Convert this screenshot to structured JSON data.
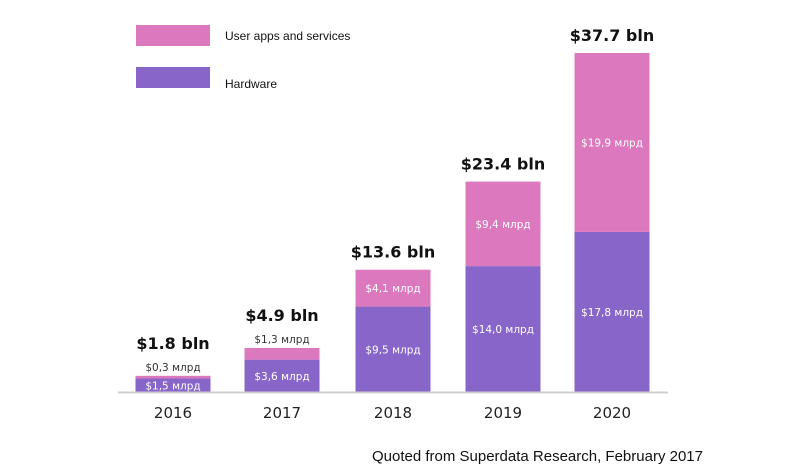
{
  "chart_data": {
    "type": "bar",
    "stacked": true,
    "categories": [
      "2016",
      "2017",
      "2018",
      "2019",
      "2020"
    ],
    "series": [
      {
        "name": "Hardware",
        "color": "#8865c8",
        "values": [
          1.5,
          3.6,
          9.5,
          14.0,
          17.8
        ],
        "labels": [
          "$1,5 млрд",
          "$3,6 млрд",
          "$9,5 млрд",
          "$14,0 млрд",
          "$17,8 млрд"
        ]
      },
      {
        "name": "User apps and services",
        "color": "#dc78bd",
        "values": [
          0.3,
          1.3,
          4.1,
          9.4,
          19.9
        ],
        "labels": [
          "$0,3 млрд",
          "$1,3 млрд",
          "$4,1 млрд",
          "$9,4 млрд",
          "$19,9 млрд"
        ]
      }
    ],
    "totals": [
      1.8,
      4.9,
      13.6,
      23.4,
      37.7
    ],
    "total_labels": [
      "$1.8 bln",
      "$4.9 bln",
      "$13.6 bln",
      "$23.4 bln",
      "$37.7 bln"
    ],
    "legend_placement": "top-left",
    "grid": false,
    "ylim": [
      0,
      37.7
    ],
    "note": "Quoted from Superdata Research, February 2017"
  }
}
